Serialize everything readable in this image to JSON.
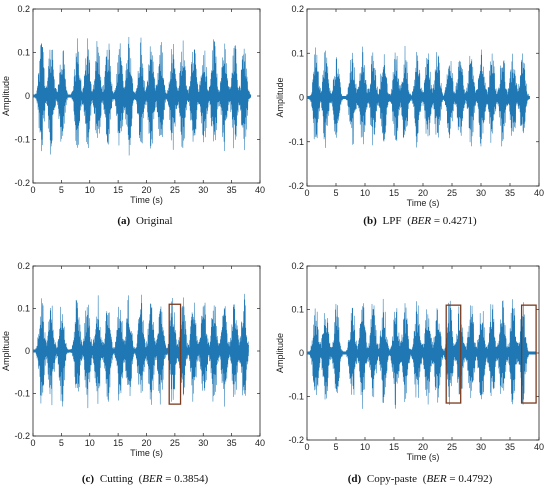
{
  "figure": {
    "panels": [
      {
        "letter": "(a)",
        "name": "Original",
        "ber_prefix": "",
        "ber_var": "",
        "ber_eq": "",
        "ber_value": "",
        "ber_suffix": ""
      },
      {
        "letter": "(b)",
        "name": "LPF",
        "ber_prefix": "(",
        "ber_var": "BER",
        "ber_eq": " = ",
        "ber_value": "0.4271",
        "ber_suffix": ")"
      },
      {
        "letter": "(c)",
        "name": "Cutting",
        "ber_prefix": "(",
        "ber_var": "BER",
        "ber_eq": " = ",
        "ber_value": "0.3854",
        "ber_suffix": ")"
      },
      {
        "letter": "(d)",
        "name": "Copy-paste",
        "ber_prefix": "(",
        "ber_var": "BER",
        "ber_eq": " = ",
        "ber_value": "0.4792",
        "ber_suffix": ")"
      }
    ]
  },
  "chart_data": [
    {
      "type": "line",
      "panel": "a",
      "xlabel": "Time (s)",
      "ylabel": "Amplitude",
      "xlim": [
        0,
        40
      ],
      "ylim": [
        -0.2,
        0.2
      ],
      "xticks": [
        "0",
        "5",
        "10",
        "15",
        "20",
        "25",
        "30",
        "35",
        "40"
      ],
      "yticks": [
        "0.2",
        "0.1",
        "0",
        "-0.1",
        "-0.2"
      ],
      "signal_end_s": 38.4,
      "peak_amplitude": 0.15,
      "color": "#1f77b4",
      "highlight_boxes": []
    },
    {
      "type": "line",
      "panel": "b",
      "xlabel": "Time (s)",
      "ylabel": "Amplitude",
      "xlim": [
        0,
        40
      ],
      "ylim": [
        -0.2,
        0.2
      ],
      "xticks": [
        "0",
        "5",
        "10",
        "15",
        "20",
        "25",
        "30",
        "35",
        "40"
      ],
      "yticks": [
        "0.2",
        "0.1",
        "0",
        "-0.1",
        "-0.2"
      ],
      "signal_end_s": 38.4,
      "peak_amplitude": 0.13,
      "color": "#1f77b4",
      "highlight_boxes": []
    },
    {
      "type": "line",
      "panel": "c",
      "xlabel": "Time (s)",
      "ylabel": "Amplitude",
      "xlim": [
        0,
        40
      ],
      "ylim": [
        -0.2,
        0.2
      ],
      "xticks": [
        "0",
        "5",
        "10",
        "15",
        "20",
        "25",
        "30",
        "35",
        "40"
      ],
      "yticks": [
        "0.2",
        "0.1",
        "0",
        "-0.1",
        "-0.2"
      ],
      "signal_end_s": 38.0,
      "peak_amplitude": 0.15,
      "color": "#1f77b4",
      "highlight_boxes": [
        {
          "x": [
            24,
            26
          ],
          "y": [
            -0.125,
            0.11
          ],
          "color": "#7a3b1e"
        }
      ]
    },
    {
      "type": "line",
      "panel": "d",
      "xlabel": "Time (s)",
      "ylabel": "Amplitude",
      "xlim": [
        0,
        40
      ],
      "ylim": [
        -0.2,
        0.2
      ],
      "xticks": [
        "0",
        "5",
        "10",
        "15",
        "20",
        "25",
        "30",
        "35",
        "40"
      ],
      "yticks": [
        "0.2",
        "0.1",
        "0",
        "-0.1",
        "-0.2"
      ],
      "signal_end_s": 39.4,
      "peak_amplitude": 0.14,
      "color": "#1f77b4",
      "highlight_boxes": [
        {
          "x": [
            24,
            26.5
          ],
          "y": [
            -0.115,
            0.11
          ],
          "color": "#7a3b1e"
        },
        {
          "x": [
            37,
            39.5
          ],
          "y": [
            -0.115,
            0.11
          ],
          "color": "#7a3b1e"
        }
      ]
    }
  ]
}
